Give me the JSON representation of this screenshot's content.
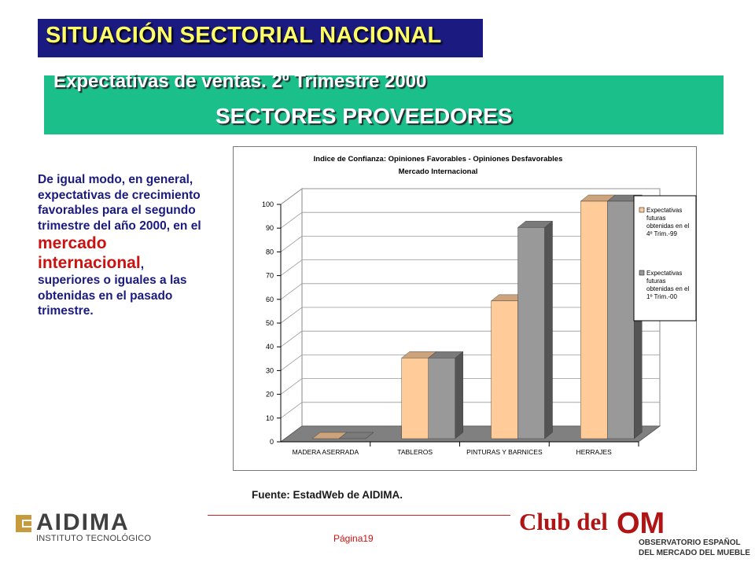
{
  "header": {
    "title": "SITUACIÓN SECTORIAL NACIONAL",
    "subtitle_line1": "Expectativas de ventas. 2º Trimestre 2000",
    "subtitle_line2": "SECTORES PROVEEDORES"
  },
  "body": {
    "text_before": "De igual modo, en general, expectativas de crecimiento favorables para el segundo trimestre del año 2000, en el",
    "highlight": "mercado internacional",
    "text_after_comma": ",",
    "text_after": "superiores o iguales a las obtenidas en el pasado trimestre."
  },
  "chart_data": {
    "type": "bar",
    "title": "Indice de Confianza: Opiniones Favorables - Opiniones Desfavorables",
    "subtitle": "Mercado Internacional",
    "categories": [
      "MADERA ASERRADA",
      "TABLEROS",
      "PINTURAS Y BARNICES",
      "HERRAJES"
    ],
    "series": [
      {
        "name": "Expectativas futuras obtenidas en el 4º Trim.-99",
        "values": [
          0,
          34,
          58,
          101
        ],
        "color": "#ffcc99"
      },
      {
        "name": "Expectativas futuras obtenidas en el 1º Trim.-00",
        "values": [
          0,
          34,
          89,
          101
        ],
        "color": "#999999"
      }
    ],
    "y_ticks": [
      "0",
      "10",
      "20",
      "30",
      "40",
      "50",
      "60",
      "70",
      "80",
      "90",
      "100"
    ],
    "ylim": [
      0,
      100
    ],
    "gridlines": true,
    "legend_position": "right",
    "style": "3d-columns",
    "legend_lines": [
      [
        "Expectativas",
        "futuras",
        "obtenidas en el",
        "4º Trim.-99"
      ],
      [
        "Expectativas",
        "futuras",
        "obtenidas en el",
        "1º Trim.-00"
      ]
    ]
  },
  "source": "Fuente: EstadWeb de AIDIMA.",
  "footer": {
    "page": "Página19",
    "aidima_name": "AIDIMA",
    "aidima_subtitle": "INSTITUTO TECNOLÓGICO",
    "club_text": "Club del",
    "om_logo_text": "OM",
    "observatorio_line1": "OBSERVATORIO ESPAÑOL",
    "observatorio_line2": "DEL MERCADO DEL MUEBLE"
  },
  "colors": {
    "title_bg": "#1a1a80",
    "title_text": "#ffff66",
    "subtitle_bg": "#1abf8a",
    "body_text": "#1a1a80",
    "highlight_text": "#cc1111",
    "club_red": "#b01515"
  }
}
